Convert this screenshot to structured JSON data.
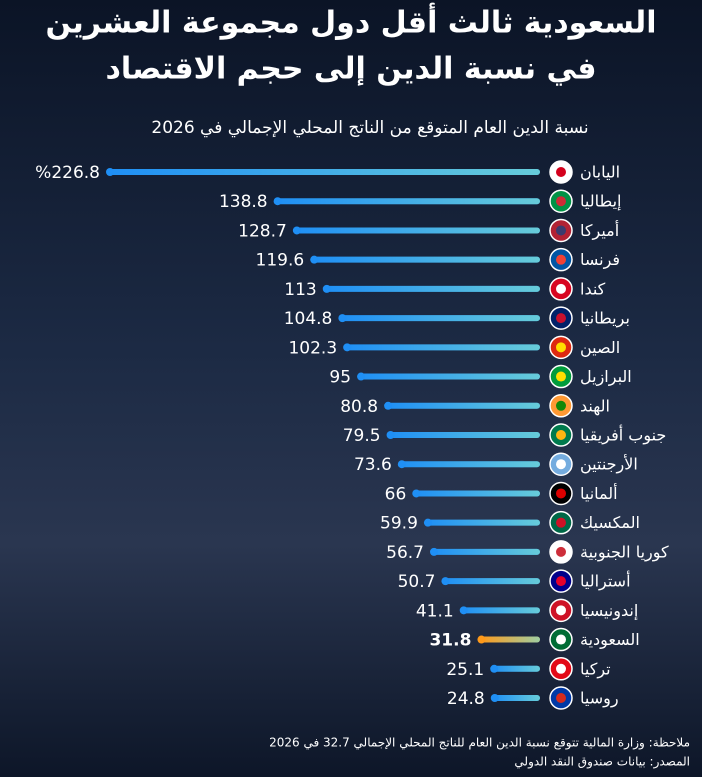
{
  "chart_data": {
    "type": "bar",
    "orientation": "horizontal",
    "title": [
      "السعودية ثالث أقل دول مجموعة العشرين",
      "في نسبة الدين إلى حجم الاقتصاد"
    ],
    "subtitle": "نسبة الدين العام المتوقع من الناتج المحلي الإجمالي في 2026",
    "categories": [
      "اليابان",
      "إيطاليا",
      "أميركا",
      "فرنسا",
      "كندا",
      "بريطانيا",
      "الصين",
      "البرازيل",
      "الهند",
      "جنوب أفريقيا",
      "الأرجنتين",
      "ألمانيا",
      "المكسيك",
      "كوريا الجنوبية",
      "أستراليا",
      "إندونيسيا",
      "السعودية",
      "تركيا",
      "روسيا"
    ],
    "values": [
      226.8,
      138.8,
      128.7,
      119.6,
      113,
      104.8,
      102.3,
      95,
      80.8,
      79.5,
      73.6,
      66,
      59.9,
      56.7,
      50.7,
      41.1,
      31.8,
      25.1,
      24.8
    ],
    "value_labels": [
      "%226.8",
      "138.8",
      "128.7",
      "119.6",
      "113",
      "104.8",
      "102.3",
      "95",
      "80.8",
      "79.5",
      "73.6",
      "66",
      "59.9",
      "56.7",
      "50.7",
      "41.1",
      "31.8",
      "25.1",
      "24.8"
    ],
    "colors": [
      "#1f8ff5",
      "#1f8ff5",
      "#1f8ff5",
      "#1f8ff5",
      "#1f8ff5",
      "#1f8ff5",
      "#1f8ff5",
      "#1f8ff5",
      "#1f8ff5",
      "#1f8ff5",
      "#1f8ff5",
      "#1f8ff5",
      "#1f8ff5",
      "#1f8ff5",
      "#1f8ff5",
      "#1f8ff5",
      "#ff9a1a",
      "#1f8ff5",
      "#1f8ff5"
    ],
    "note": "ملاحظة: وزارة المالية تتوقع نسبة الدين العام للناتج المحلي الإجمالي 32.7 في 2026",
    "source": "المصدر: بيانات صندوق النقد الدولي"
  }
}
